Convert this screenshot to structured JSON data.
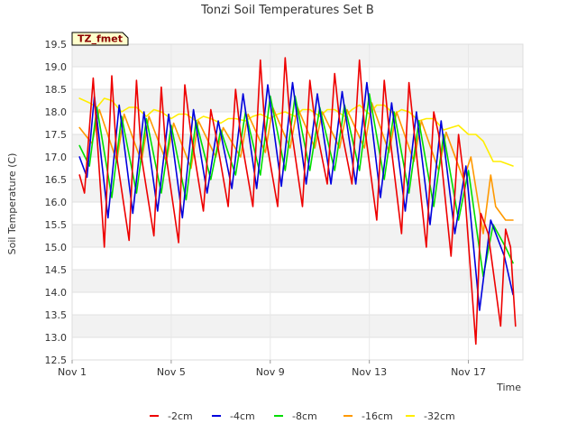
{
  "chart_data": {
    "type": "line",
    "title": "Tonzi Soil Temperatures Set B",
    "xlabel": "Time",
    "ylabel": "Soil Temperature (C)",
    "badge": "TZ_fmet",
    "xlim": [
      0,
      18.2
    ],
    "ylim": [
      12.5,
      19.5
    ],
    "yticks": [
      12.5,
      13.0,
      13.5,
      14.0,
      14.5,
      15.0,
      15.5,
      16.0,
      16.5,
      17.0,
      17.5,
      18.0,
      18.5,
      19.0,
      19.5
    ],
    "ytick_labels": [
      "12.5",
      "13.0",
      "13.5",
      "14.0",
      "14.5",
      "15.0",
      "15.5",
      "16.0",
      "16.5",
      "17.0",
      "17.5",
      "18.0",
      "18.5",
      "19.0",
      "19.5"
    ],
    "xticks": [
      0,
      4,
      8,
      12,
      16
    ],
    "xtick_labels": [
      "Nov 1",
      "Nov 5",
      "Nov 9",
      "Nov 13",
      "Nov 17"
    ],
    "grid": true,
    "legend_position": "bottom-center",
    "series": [
      {
        "name": "-2cm",
        "color": "#ee0000",
        "x": [
          0.3,
          0.5,
          0.85,
          1.3,
          1.6,
          1.8,
          2.3,
          2.6,
          2.8,
          3.3,
          3.6,
          3.8,
          4.3,
          4.55,
          4.8,
          5.3,
          5.6,
          5.8,
          6.3,
          6.6,
          6.8,
          7.3,
          7.6,
          7.8,
          8.3,
          8.6,
          8.8,
          9.3,
          9.6,
          9.8,
          10.3,
          10.6,
          10.8,
          11.3,
          11.6,
          11.8,
          12.3,
          12.6,
          12.8,
          13.3,
          13.6,
          13.8,
          14.3,
          14.6,
          14.8,
          15.3,
          15.6,
          15.8,
          16.3,
          16.5,
          16.8,
          17.3,
          17.5,
          17.7,
          17.9
        ],
        "y": [
          16.6,
          16.2,
          18.75,
          15.0,
          18.8,
          17.0,
          15.15,
          18.7,
          17.0,
          15.25,
          18.55,
          17.0,
          15.1,
          18.6,
          17.5,
          15.8,
          18.05,
          17.5,
          15.9,
          18.5,
          17.5,
          15.9,
          19.15,
          17.5,
          15.9,
          19.2,
          17.8,
          15.9,
          18.7,
          17.8,
          16.4,
          18.85,
          17.8,
          16.4,
          19.15,
          17.7,
          15.6,
          18.7,
          17.6,
          15.3,
          18.65,
          17.6,
          15.0,
          18.0,
          17.5,
          14.8,
          17.5,
          16.6,
          12.85,
          15.75,
          15.3,
          13.25,
          15.4,
          15.0,
          13.25
        ]
      },
      {
        "name": "-4cm",
        "color": "#0000dd",
        "x": [
          0.3,
          0.6,
          0.9,
          1.45,
          1.9,
          2.45,
          2.9,
          3.45,
          3.9,
          4.45,
          4.9,
          5.45,
          5.9,
          6.45,
          6.9,
          7.45,
          7.9,
          8.45,
          8.9,
          9.45,
          9.9,
          10.45,
          10.9,
          11.45,
          11.9,
          12.45,
          12.9,
          13.45,
          13.9,
          14.45,
          14.9,
          15.45,
          15.9,
          16.45,
          16.9,
          17.45,
          17.8
        ],
        "y": [
          17.0,
          16.55,
          18.35,
          15.65,
          18.15,
          15.75,
          18.0,
          15.8,
          17.95,
          15.65,
          18.05,
          16.2,
          17.8,
          16.3,
          18.4,
          16.3,
          18.6,
          16.35,
          18.65,
          16.4,
          18.4,
          16.4,
          18.45,
          16.4,
          18.65,
          16.1,
          18.2,
          15.8,
          18.0,
          15.5,
          17.8,
          15.3,
          16.8,
          13.6,
          15.6,
          14.8,
          13.95
        ]
      },
      {
        "name": "-8cm",
        "color": "#00dd00",
        "x": [
          0.3,
          0.7,
          1.0,
          1.6,
          2.0,
          2.6,
          3.0,
          3.6,
          4.0,
          4.6,
          5.0,
          5.6,
          6.0,
          6.6,
          7.0,
          7.6,
          8.0,
          8.6,
          9.0,
          9.6,
          10.0,
          10.6,
          11.0,
          11.6,
          12.0,
          12.6,
          13.0,
          13.6,
          14.0,
          14.6,
          15.0,
          15.6,
          16.0,
          16.6,
          17.0,
          17.5,
          17.8
        ],
        "y": [
          17.25,
          16.8,
          18.1,
          16.1,
          17.9,
          16.2,
          17.85,
          16.2,
          17.7,
          16.05,
          17.8,
          16.5,
          17.6,
          16.6,
          18.0,
          16.6,
          18.35,
          16.7,
          18.35,
          16.7,
          18.1,
          16.7,
          18.15,
          16.7,
          18.4,
          16.5,
          18.0,
          16.2,
          17.8,
          15.9,
          17.5,
          15.6,
          16.7,
          14.35,
          15.5,
          15.0,
          14.65
        ]
      },
      {
        "name": "-16cm",
        "color": "#ff9900",
        "x": [
          0.3,
          0.8,
          1.1,
          1.8,
          2.1,
          2.8,
          3.1,
          3.8,
          4.1,
          4.8,
          5.1,
          5.8,
          6.1,
          6.8,
          7.1,
          7.8,
          8.1,
          8.8,
          9.1,
          9.8,
          10.1,
          10.8,
          11.1,
          11.8,
          12.1,
          12.8,
          13.1,
          13.8,
          14.1,
          14.8,
          15.1,
          15.8,
          16.1,
          16.6,
          16.9,
          17.1,
          17.5,
          17.8
        ],
        "y": [
          17.65,
          17.3,
          18.05,
          16.9,
          17.95,
          16.9,
          17.9,
          16.9,
          17.75,
          16.75,
          17.8,
          17.0,
          17.65,
          17.0,
          17.95,
          17.1,
          18.1,
          17.2,
          18.1,
          17.2,
          18.0,
          17.2,
          18.05,
          17.2,
          18.2,
          17.1,
          18.0,
          16.9,
          17.8,
          16.7,
          17.55,
          16.5,
          17.0,
          15.3,
          16.6,
          15.9,
          15.6,
          15.6
        ]
      },
      {
        "name": "-32cm",
        "color": "#ffee00",
        "x": [
          0.3,
          0.7,
          1.0,
          1.3,
          1.6,
          2.0,
          2.3,
          2.6,
          3.0,
          3.3,
          3.6,
          4.0,
          4.3,
          4.6,
          5.0,
          5.3,
          5.6,
          6.0,
          6.3,
          6.6,
          7.0,
          7.3,
          7.6,
          8.0,
          8.3,
          8.6,
          9.0,
          9.3,
          9.6,
          10.0,
          10.3,
          10.6,
          11.0,
          11.3,
          11.6,
          12.0,
          12.3,
          12.6,
          13.0,
          13.3,
          13.6,
          14.0,
          14.3,
          14.6,
          15.0,
          15.3,
          15.6,
          16.0,
          16.3,
          16.6,
          17.0,
          17.3,
          17.8
        ],
        "y": [
          18.3,
          18.2,
          18.1,
          18.3,
          18.25,
          18.0,
          18.1,
          18.1,
          17.9,
          18.05,
          18.0,
          17.85,
          17.95,
          17.95,
          17.8,
          17.9,
          17.85,
          17.75,
          17.85,
          17.85,
          17.8,
          17.9,
          17.95,
          17.85,
          17.95,
          18.0,
          17.9,
          18.05,
          18.05,
          17.9,
          18.05,
          18.05,
          17.9,
          18.05,
          18.15,
          17.95,
          18.15,
          18.15,
          17.95,
          18.05,
          18.0,
          17.8,
          17.85,
          17.85,
          17.6,
          17.65,
          17.7,
          17.5,
          17.5,
          17.35,
          16.9,
          16.9,
          16.8
        ]
      }
    ]
  }
}
